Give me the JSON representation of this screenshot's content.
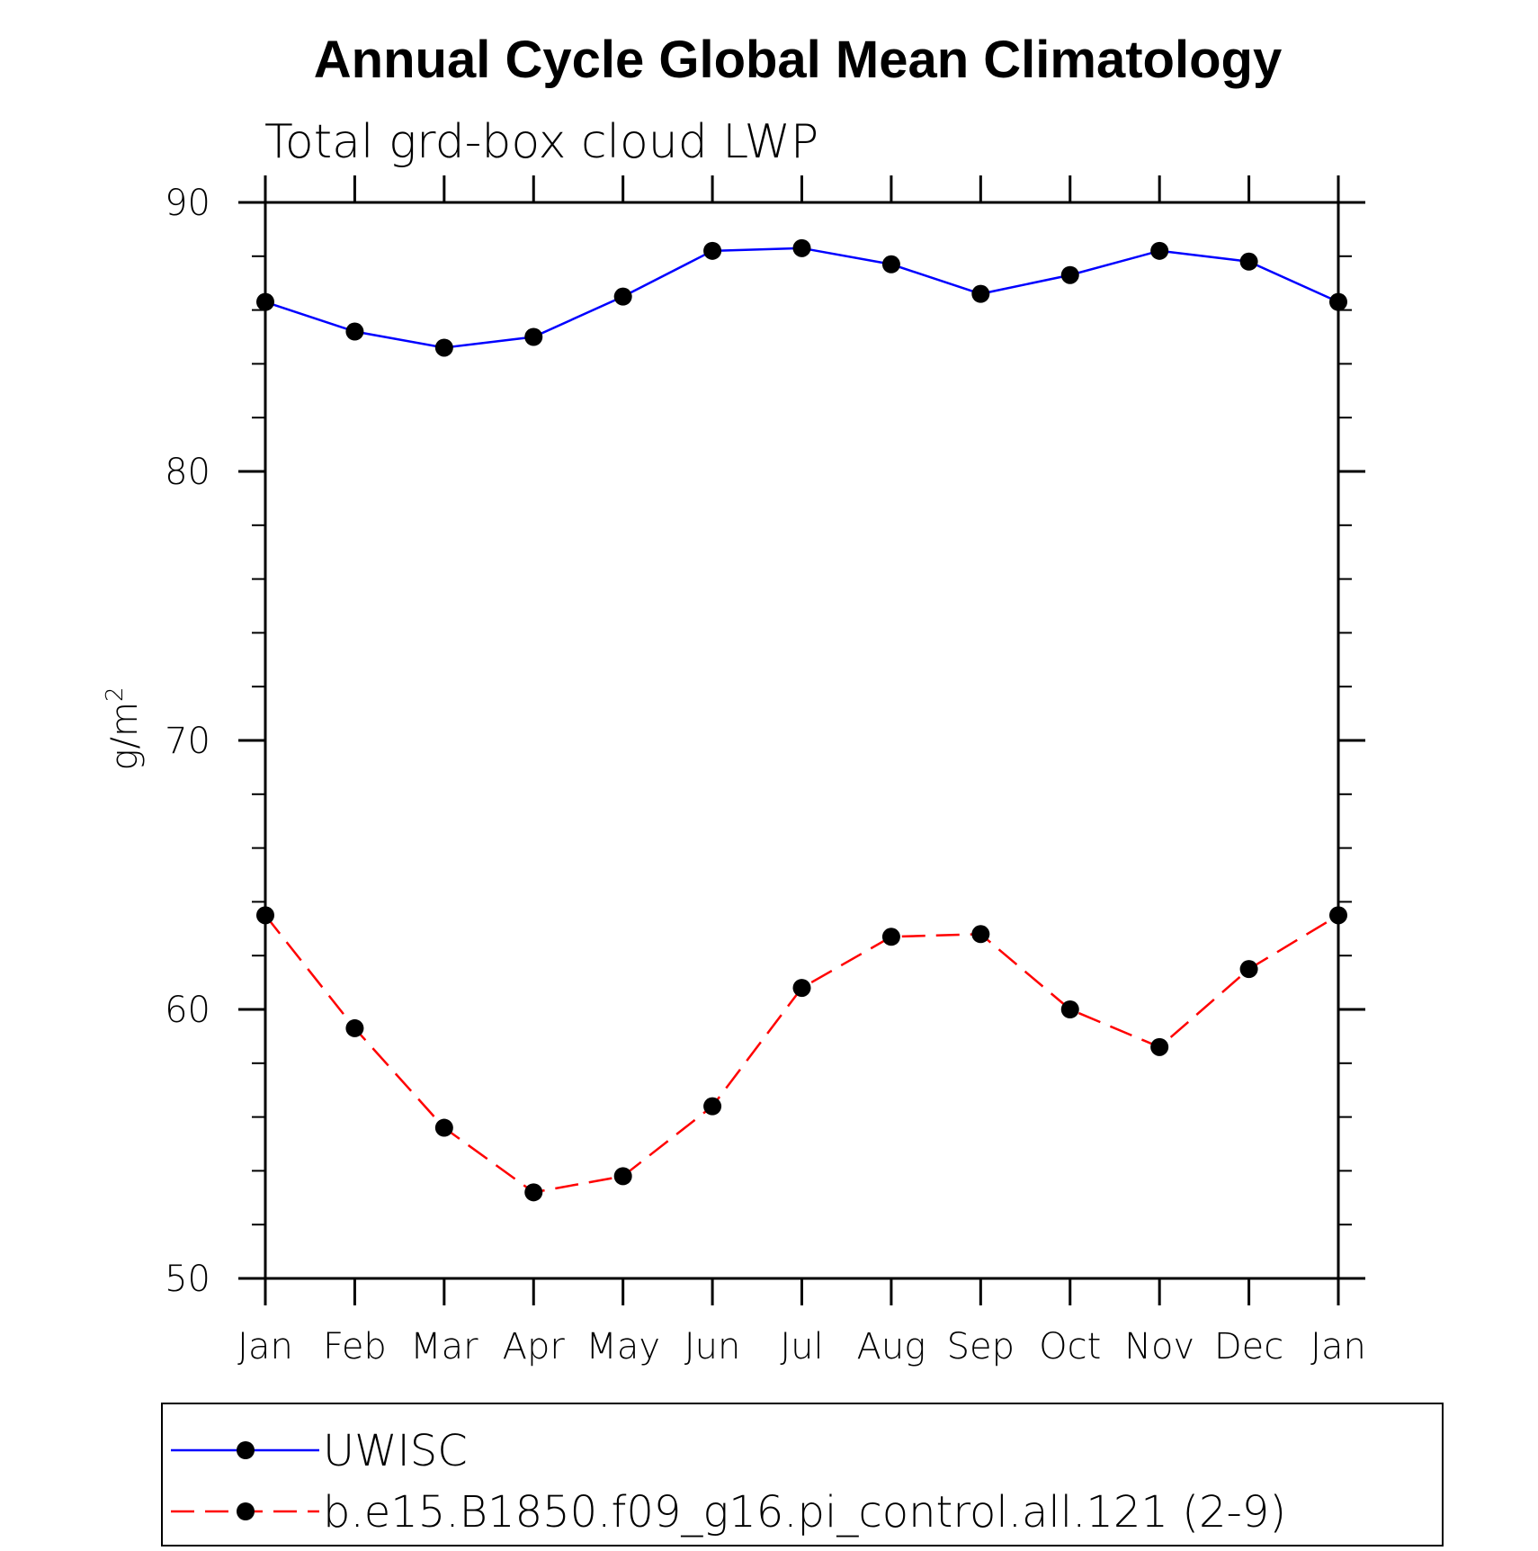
{
  "chart_data": {
    "type": "line",
    "title": "Annual Cycle Global Mean Climatology",
    "subtitle": "Total grd-box cloud LWP",
    "ylabel": "g/m",
    "ylabel_superscript": "2",
    "xlabel": "",
    "ylim": [
      50,
      90
    ],
    "yticks": [
      50,
      60,
      70,
      80,
      90
    ],
    "categories": [
      "Jan",
      "Feb",
      "Mar",
      "Apr",
      "May",
      "Jun",
      "Jul",
      "Aug",
      "Sep",
      "Oct",
      "Nov",
      "Dec",
      "Jan"
    ],
    "series": [
      {
        "name": "UWISC",
        "color": "#0000ff",
        "dash": "solid",
        "marker": "filled-circle",
        "values": [
          86.3,
          85.2,
          84.6,
          85.0,
          86.5,
          88.2,
          88.3,
          87.7,
          86.6,
          87.3,
          88.2,
          87.8,
          86.3
        ]
      },
      {
        "name": "b.e15.B1850.f09_g16.pi_control.all.121 (2-9)",
        "color": "#ff0000",
        "dash": "dashed",
        "marker": "filled-circle",
        "values": [
          63.5,
          59.3,
          55.6,
          53.2,
          53.8,
          56.4,
          60.8,
          62.7,
          62.8,
          60.0,
          58.6,
          61.5,
          63.5
        ]
      }
    ],
    "grid": false,
    "legend_position": "bottom"
  }
}
